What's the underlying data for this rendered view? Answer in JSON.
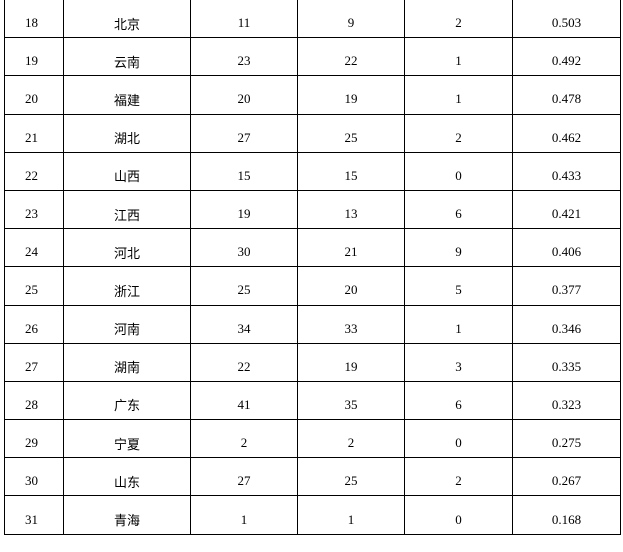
{
  "table": {
    "rows": [
      [
        "18",
        "北京",
        "11",
        "9",
        "2",
        "0.503"
      ],
      [
        "19",
        "云南",
        "23",
        "22",
        "1",
        "0.492"
      ],
      [
        "20",
        "福建",
        "20",
        "19",
        "1",
        "0.478"
      ],
      [
        "21",
        "湖北",
        "27",
        "25",
        "2",
        "0.462"
      ],
      [
        "22",
        "山西",
        "15",
        "15",
        "0",
        "0.433"
      ],
      [
        "23",
        "江西",
        "19",
        "13",
        "6",
        "0.421"
      ],
      [
        "24",
        "河北",
        "30",
        "21",
        "9",
        "0.406"
      ],
      [
        "25",
        "浙江",
        "25",
        "20",
        "5",
        "0.377"
      ],
      [
        "26",
        "河南",
        "34",
        "33",
        "1",
        "0.346"
      ],
      [
        "27",
        "湖南",
        "22",
        "19",
        "3",
        "0.335"
      ],
      [
        "28",
        "广东",
        "41",
        "35",
        "6",
        "0.323"
      ],
      [
        "29",
        "宁夏",
        "2",
        "2",
        "0",
        "0.275"
      ],
      [
        "30",
        "山东",
        "27",
        "25",
        "2",
        "0.267"
      ],
      [
        "31",
        "青海",
        "1",
        "1",
        "0",
        "0.168"
      ]
    ]
  }
}
